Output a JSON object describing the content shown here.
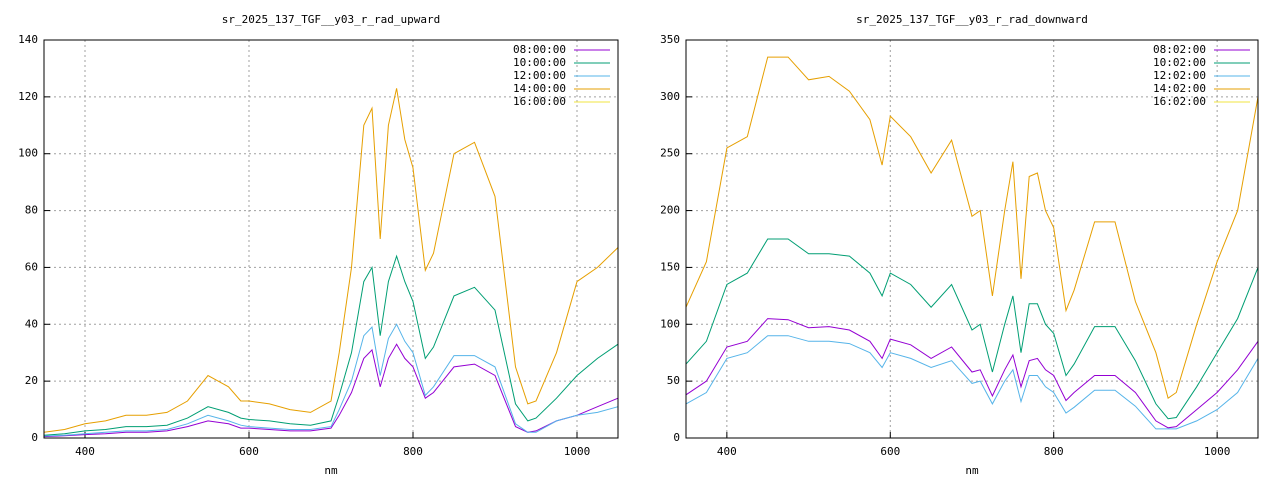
{
  "chart_data": [
    {
      "type": "line",
      "title": "sr_2025_137_TGF__y03_r_rad_upward",
      "xlabel": "nm",
      "xlim": [
        350,
        1050
      ],
      "xticks": [
        400,
        600,
        800,
        1000
      ],
      "ylim": [
        0,
        140
      ],
      "yticks": [
        0,
        20,
        40,
        60,
        80,
        100,
        120,
        140
      ],
      "grid": true,
      "legend": "top-right",
      "x": [
        350,
        375,
        400,
        425,
        450,
        475,
        500,
        525,
        550,
        575,
        590,
        600,
        625,
        650,
        675,
        700,
        710,
        725,
        740,
        750,
        760,
        770,
        780,
        790,
        800,
        815,
        825,
        850,
        875,
        900,
        925,
        940,
        950,
        975,
        1000,
        1025,
        1050
      ],
      "series": [
        {
          "name": "08:00:00",
          "color": "#9400d3",
          "values": [
            0.5,
            0.8,
            1.2,
            1.5,
            2,
            2,
            2.5,
            4,
            6,
            5,
            3.5,
            3.5,
            3,
            2.5,
            2.5,
            3.5,
            8,
            16,
            28,
            31,
            18,
            28,
            33,
            28,
            25,
            14,
            16,
            25,
            26,
            22,
            4,
            2,
            2.5,
            6,
            8,
            11,
            14
          ]
        },
        {
          "name": "10:00:00",
          "color": "#009e73",
          "values": [
            1,
            1.5,
            2.5,
            3,
            4,
            4,
            4.5,
            7,
            11,
            9,
            7,
            6.5,
            6,
            5,
            4.5,
            6,
            15,
            30,
            55,
            60,
            36,
            55,
            64,
            55,
            48,
            28,
            32,
            50,
            53,
            45,
            12,
            6,
            7,
            14,
            22,
            28,
            33
          ]
        },
        {
          "name": "12:00:00",
          "color": "#56b4e9",
          "values": [
            0.7,
            1,
            1.5,
            2,
            2.5,
            2.5,
            3,
            5,
            8,
            6,
            4.5,
            4,
            3.5,
            3,
            3,
            4,
            10,
            20,
            36,
            39,
            22,
            35,
            40,
            34,
            30,
            15,
            18,
            29,
            29,
            25,
            5,
            2,
            2,
            6,
            8,
            9,
            11
          ]
        },
        {
          "name": "14:00:00",
          "color": "#e69f00",
          "values": [
            2,
            3,
            5,
            6,
            8,
            8,
            9,
            13,
            22,
            18,
            13,
            13,
            12,
            10,
            9,
            13,
            30,
            60,
            110,
            116,
            70,
            110,
            123,
            105,
            95,
            59,
            65,
            100,
            104,
            85,
            25,
            12,
            13,
            30,
            55,
            60,
            67
          ]
        },
        {
          "name": "16:00:00",
          "color": "#f0e442",
          "values": [
            null,
            null,
            null,
            null,
            null,
            null,
            null,
            null,
            null,
            null,
            null,
            null,
            null,
            null,
            null,
            null,
            null,
            null,
            null,
            null,
            null,
            null,
            null,
            null,
            null,
            null,
            null,
            null,
            null,
            null,
            null,
            null,
            null,
            null,
            null,
            null,
            null
          ]
        }
      ]
    },
    {
      "type": "line",
      "title": "sr_2025_137_TGF__y03_r_rad_downward",
      "xlabel": "nm",
      "xlim": [
        350,
        1050
      ],
      "xticks": [
        400,
        600,
        800,
        1000
      ],
      "ylim": [
        0,
        350
      ],
      "yticks": [
        0,
        50,
        100,
        150,
        200,
        250,
        300,
        350
      ],
      "grid": true,
      "legend": "top-right",
      "x": [
        350,
        375,
        400,
        425,
        450,
        475,
        500,
        525,
        550,
        575,
        590,
        600,
        625,
        650,
        675,
        700,
        710,
        725,
        740,
        750,
        760,
        770,
        780,
        790,
        800,
        815,
        825,
        850,
        875,
        900,
        925,
        940,
        950,
        975,
        1000,
        1025,
        1050
      ],
      "series": [
        {
          "name": "08:02:00",
          "color": "#9400d3",
          "values": [
            38,
            50,
            80,
            85,
            105,
            104,
            97,
            98,
            95,
            85,
            70,
            87,
            82,
            70,
            80,
            58,
            60,
            37,
            60,
            73,
            45,
            68,
            70,
            60,
            55,
            33,
            40,
            55,
            55,
            40,
            15,
            9,
            10,
            25,
            40,
            60,
            85
          ]
        },
        {
          "name": "10:02:00",
          "color": "#009e73",
          "values": [
            65,
            85,
            135,
            145,
            175,
            175,
            162,
            162,
            160,
            145,
            125,
            145,
            135,
            115,
            135,
            95,
            100,
            58,
            100,
            125,
            75,
            118,
            118,
            100,
            92,
            55,
            65,
            98,
            98,
            68,
            30,
            17,
            18,
            45,
            75,
            105,
            150
          ]
        },
        {
          "name": "12:02:00",
          "color": "#56b4e9",
          "values": [
            30,
            40,
            70,
            75,
            90,
            90,
            85,
            85,
            83,
            75,
            62,
            75,
            70,
            62,
            68,
            48,
            50,
            30,
            50,
            60,
            32,
            55,
            55,
            45,
            40,
            22,
            27,
            42,
            42,
            28,
            8,
            8,
            8,
            15,
            25,
            40,
            70
          ]
        },
        {
          "name": "14:02:00",
          "color": "#e69f00",
          "values": [
            115,
            155,
            255,
            265,
            335,
            335,
            315,
            318,
            305,
            280,
            240,
            283,
            265,
            233,
            262,
            195,
            200,
            125,
            200,
            243,
            140,
            230,
            233,
            200,
            185,
            112,
            130,
            190,
            190,
            120,
            75,
            35,
            40,
            100,
            155,
            200,
            300
          ]
        },
        {
          "name": "16:02:00",
          "color": "#f0e442",
          "values": [
            null,
            null,
            null,
            null,
            null,
            null,
            null,
            null,
            null,
            null,
            null,
            null,
            null,
            null,
            null,
            null,
            null,
            null,
            null,
            null,
            null,
            null,
            null,
            null,
            null,
            null,
            null,
            null,
            null,
            null,
            null,
            null,
            null,
            null,
            null,
            null,
            null
          ]
        }
      ]
    }
  ]
}
